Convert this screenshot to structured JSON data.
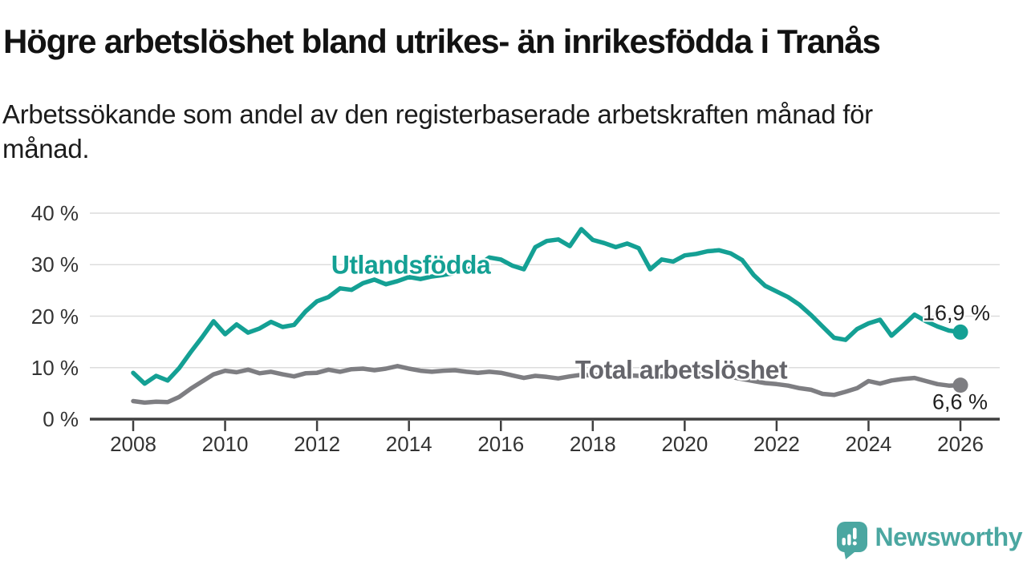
{
  "header": {
    "title": "Högre arbetslöshet bland utrikes- än inrikesfödda i Tranås",
    "subtitle": "Arbetssökande som andel av den registerbaserade arbetskraften månad för månad."
  },
  "chart_data": {
    "type": "line",
    "title": "Högre arbetslöshet bland utrikes- än inrikesfödda i Tranås",
    "subtitle": "Arbetssökande som andel av den registerbaserade arbetskraften månad för månad.",
    "xlabel": "",
    "ylabel": "",
    "ylim": [
      0,
      40
    ],
    "xlim": [
      2008,
      2026
    ],
    "grid": true,
    "legend_position": "inline-labels-on-lines",
    "y_ticks": {
      "values": [
        0,
        10,
        20,
        30,
        40
      ],
      "labels": [
        "0 %",
        "10 %",
        "20 %",
        "30 %",
        "40 %"
      ]
    },
    "x_ticks": {
      "values": [
        2008,
        2010,
        2012,
        2014,
        2016,
        2018,
        2020,
        2022,
        2024,
        2026
      ],
      "labels": [
        "2008",
        "2010",
        "2012",
        "2014",
        "2016",
        "2018",
        "2020",
        "2022",
        "2024",
        "2026"
      ]
    },
    "x": [
      2008,
      2008.25,
      2008.5,
      2008.75,
      2009,
      2009.25,
      2009.5,
      2009.75,
      2010,
      2010.25,
      2010.5,
      2010.75,
      2011,
      2011.25,
      2011.5,
      2011.75,
      2012,
      2012.25,
      2012.5,
      2012.75,
      2013,
      2013.25,
      2013.5,
      2013.75,
      2014,
      2014.25,
      2014.5,
      2014.75,
      2015,
      2015.25,
      2015.5,
      2015.75,
      2016,
      2016.25,
      2016.5,
      2016.75,
      2017,
      2017.25,
      2017.5,
      2017.75,
      2018,
      2018.25,
      2018.5,
      2018.75,
      2019,
      2019.25,
      2019.5,
      2019.75,
      2020,
      2020.25,
      2020.5,
      2020.75,
      2021,
      2021.25,
      2021.5,
      2021.75,
      2022,
      2022.25,
      2022.5,
      2022.75,
      2023,
      2023.25,
      2023.5,
      2023.75,
      2024,
      2024.25,
      2024.5,
      2024.75,
      2025,
      2025.25,
      2025.5,
      2025.75,
      2026
    ],
    "series": [
      {
        "name": "Utlandsfödda",
        "color": "#14A094",
        "end_value": 16.9,
        "end_label": "16,9 %",
        "values": [
          9.0,
          6.9,
          8.4,
          7.5,
          9.9,
          13.0,
          15.9,
          19.0,
          16.5,
          18.4,
          16.8,
          17.6,
          18.9,
          17.9,
          18.3,
          20.9,
          22.9,
          23.7,
          25.4,
          25.1,
          26.4,
          27.1,
          26.2,
          26.8,
          27.6,
          27.2,
          27.7,
          28.0,
          28.4,
          29.0,
          29.8,
          31.4,
          31.0,
          29.8,
          29.1,
          33.4,
          34.6,
          34.9,
          33.6,
          36.9,
          34.8,
          34.2,
          33.4,
          34.1,
          33.2,
          29.1,
          31.0,
          30.6,
          31.8,
          32.1,
          32.6,
          32.8,
          32.2,
          30.9,
          28.0,
          25.9,
          24.8,
          23.7,
          22.2,
          20.2,
          18.0,
          15.8,
          15.4,
          17.5,
          18.6,
          19.3,
          16.2,
          18.2,
          20.3,
          19.0,
          18.0,
          17.2,
          16.9
        ]
      },
      {
        "name": "Total arbetslöshet",
        "color": "#7E7E82",
        "end_value": 6.6,
        "end_label": "6,6 %",
        "values": [
          3.5,
          3.2,
          3.4,
          3.3,
          4.3,
          5.9,
          7.3,
          8.7,
          9.4,
          9.1,
          9.6,
          8.9,
          9.2,
          8.7,
          8.3,
          8.9,
          9.0,
          9.6,
          9.2,
          9.7,
          9.8,
          9.5,
          9.8,
          10.3,
          9.8,
          9.4,
          9.2,
          9.4,
          9.5,
          9.2,
          9.0,
          9.2,
          9.0,
          8.5,
          8.0,
          8.4,
          8.2,
          7.9,
          8.3,
          8.6,
          8.5,
          8.6,
          8.8,
          8.5,
          8.4,
          8.2,
          8.3,
          8.4,
          8.6,
          8.9,
          8.8,
          8.5,
          8.2,
          7.8,
          7.4,
          7.0,
          6.8,
          6.5,
          6.0,
          5.7,
          4.9,
          4.7,
          5.3,
          6.0,
          7.4,
          6.9,
          7.5,
          7.8,
          8.0,
          7.4,
          6.8,
          6.5,
          6.6
        ]
      }
    ],
    "style": {
      "grid_color": "#DCDCDC",
      "axis_color": "#3F3F3F",
      "tick_text_color": "#333333",
      "background": "#FFFFFF"
    }
  },
  "footer": {
    "brand": "Newsworthy"
  }
}
